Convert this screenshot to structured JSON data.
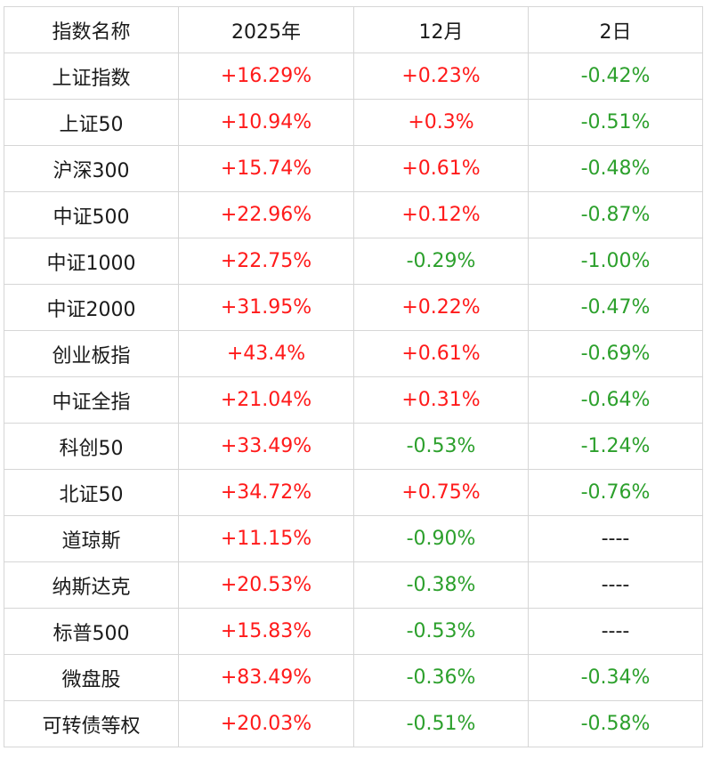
{
  "colors": {
    "up": "#ff1a1a",
    "down": "#2ca02c",
    "text": "#1a1a1a",
    "grid": "#d6d6d6"
  },
  "header": {
    "name": "指数名称",
    "year": "2025年",
    "month": "12月",
    "day": "2日"
  },
  "rows": [
    {
      "name": "上证指数",
      "year": "+16.29%",
      "month": "+0.23%",
      "day": "-0.42%"
    },
    {
      "name": "上证50",
      "year": "+10.94%",
      "month": "+0.3%",
      "day": "-0.51%"
    },
    {
      "name": "沪深300",
      "year": "+15.74%",
      "month": "+0.61%",
      "day": "-0.48%"
    },
    {
      "name": "中证500",
      "year": "+22.96%",
      "month": "+0.12%",
      "day": "-0.87%"
    },
    {
      "name": "中证1000",
      "year": "+22.75%",
      "month": "-0.29%",
      "day": "-1.00%"
    },
    {
      "name": "中证2000",
      "year": "+31.95%",
      "month": "+0.22%",
      "day": "-0.47%"
    },
    {
      "name": "创业板指",
      "year": "+43.4%",
      "month": "+0.61%",
      "day": "-0.69%"
    },
    {
      "name": "中证全指",
      "year": "+21.04%",
      "month": "+0.31%",
      "day": "-0.64%"
    },
    {
      "name": "科创50",
      "year": "+33.49%",
      "month": "-0.53%",
      "day": "-1.24%"
    },
    {
      "name": "北证50",
      "year": "+34.72%",
      "month": "+0.75%",
      "day": "-0.76%"
    },
    {
      "name": "道琼斯",
      "year": "+11.15%",
      "month": "-0.90%",
      "day": "----"
    },
    {
      "name": "纳斯达克",
      "year": "+20.53%",
      "month": "-0.38%",
      "day": "----"
    },
    {
      "name": "标普500",
      "year": "+15.83%",
      "month": "-0.53%",
      "day": "----"
    },
    {
      "name": "微盘股",
      "year": "+83.49%",
      "month": "-0.36%",
      "day": "-0.34%"
    },
    {
      "name": "可转债等权",
      "year": "+20.03%",
      "month": "-0.51%",
      "day": "-0.58%"
    }
  ]
}
